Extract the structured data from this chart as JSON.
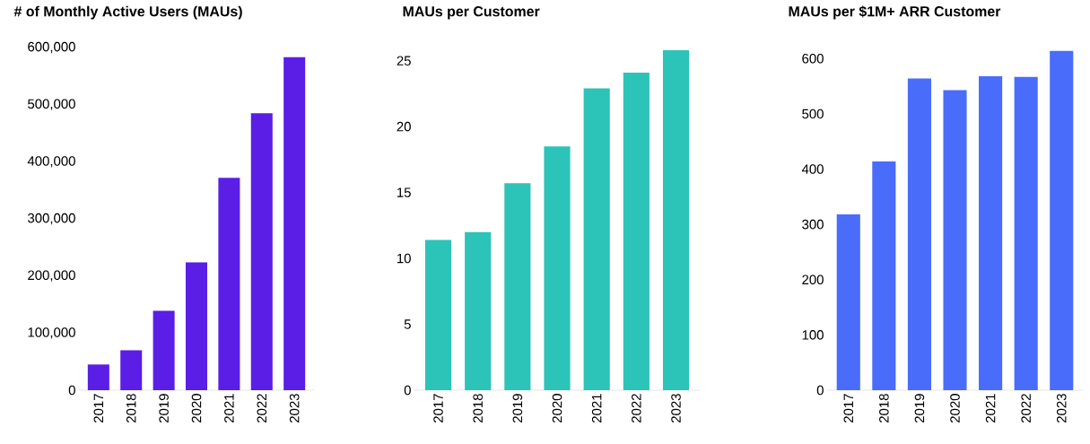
{
  "chart_data": [
    {
      "type": "bar",
      "title": "# of Monthly Active Users (MAUs)",
      "categories": [
        "2017",
        "2018",
        "2019",
        "2020",
        "2021",
        "2022",
        "2023"
      ],
      "values": [
        45000,
        70000,
        139000,
        224000,
        372000,
        485000,
        583000
      ],
      "color": "#5a1ee6",
      "ylim": [
        0,
        600000
      ],
      "yticks": [
        {
          "value": 0,
          "label": "0"
        },
        {
          "value": 100000,
          "label": "100,000"
        },
        {
          "value": 200000,
          "label": "200,000"
        },
        {
          "value": 300000,
          "label": "300,000"
        },
        {
          "value": 400000,
          "label": "400,000"
        },
        {
          "value": 500000,
          "label": "500,000"
        },
        {
          "value": 600000,
          "label": "600,000"
        }
      ]
    },
    {
      "type": "bar",
      "title": "MAUs per Customer",
      "categories": [
        "2017",
        "2018",
        "2019",
        "2020",
        "2021",
        "2022",
        "2023"
      ],
      "values": [
        11.4,
        12.0,
        15.7,
        18.5,
        22.9,
        24.1,
        25.8
      ],
      "color": "#2cc3b8",
      "ylim": [
        0,
        26
      ],
      "yticks": [
        0,
        5,
        10,
        15,
        20,
        25
      ]
    },
    {
      "type": "bar",
      "title": "MAUs per $1M+ ARR Customer",
      "categories": [
        "2017",
        "2018",
        "2019",
        "2020",
        "2021",
        "2022",
        "2023"
      ],
      "values": [
        318,
        414,
        564,
        543,
        568,
        567,
        614
      ],
      "color": "#4a6cfa",
      "ylim": [
        0,
        620
      ],
      "yticks": [
        0,
        100,
        200,
        300,
        400,
        500,
        600
      ]
    }
  ]
}
